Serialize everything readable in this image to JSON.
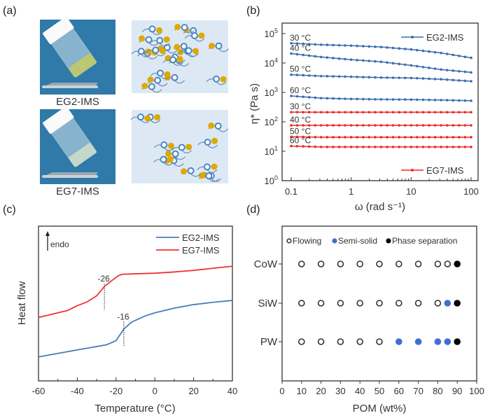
{
  "panel_labels": {
    "a": "(a)",
    "b": "(b)",
    "c": "(c)",
    "d": "(d)"
  },
  "panel_a": {
    "photo_labels": [
      "EG2-IMS",
      "EG7-IMS"
    ],
    "colors": {
      "photo_bg": "#2f7aa8",
      "schematic_bg": "#dce9f5",
      "anion": "#e0a800",
      "cation": "#4a86c5"
    }
  },
  "chart_data": [
    {
      "id": "b",
      "type": "line",
      "xlabel": "ω (rad s⁻¹)",
      "ylabel": "η* (Pa s)",
      "xscale": "log",
      "yscale": "log",
      "xlim": [
        0.1,
        100
      ],
      "ylim": [
        1,
        100000
      ],
      "x_ticks": [
        "0.1",
        "1",
        "10",
        "100"
      ],
      "y_ticks": [
        {
          "base": "10",
          "exp": "0"
        },
        {
          "base": "10",
          "exp": "1"
        },
        {
          "base": "10",
          "exp": "2"
        },
        {
          "base": "10",
          "exp": "3"
        },
        {
          "base": "10",
          "exp": "4"
        },
        {
          "base": "10",
          "exp": "5"
        }
      ],
      "legend": {
        "placement": "right",
        "entries": [
          {
            "name": "EG2-IMS",
            "color": "#3b6db0"
          },
          {
            "name": "EG7-IMS",
            "color": "#ee2a2a"
          }
        ]
      },
      "x": [
        0.1,
        0.316,
        1,
        3.16,
        10,
        31.6,
        100
      ],
      "series": [
        {
          "group": "EG2-IMS",
          "label": "30 °C",
          "color": "#3b6db0",
          "values": [
            47000,
            42000,
            39000,
            35000,
            29000,
            22000,
            15000
          ]
        },
        {
          "group": "EG2-IMS",
          "label": "40 °C",
          "color": "#3b6db0",
          "values": [
            21000,
            16000,
            13000,
            11000,
            8300,
            6000,
            4800
          ]
        },
        {
          "group": "EG2-IMS",
          "label": "50 °C",
          "color": "#3b6db0",
          "values": [
            4000,
            3600,
            3400,
            3200,
            3100,
            2800,
            2400
          ]
        },
        {
          "group": "EG2-IMS",
          "label": "60 °C",
          "color": "#3b6db0",
          "values": [
            760,
            640,
            600,
            580,
            570,
            550,
            520
          ]
        },
        {
          "group": "EG7-IMS",
          "label": "30 °C",
          "color": "#ee2a2a",
          "values": [
            214,
            212,
            212,
            212,
            212,
            212,
            212
          ]
        },
        {
          "group": "EG7-IMS",
          "label": "40 °C",
          "color": "#ee2a2a",
          "values": [
            76,
            76,
            76,
            76,
            76,
            76,
            76
          ]
        },
        {
          "group": "EG7-IMS",
          "label": "50 °C",
          "color": "#ee2a2a",
          "values": [
            31,
            30,
            30,
            30,
            30,
            30,
            30
          ]
        },
        {
          "group": "EG7-IMS",
          "label": "60 °C",
          "color": "#ee2a2a",
          "values": [
            15,
            14,
            14,
            14,
            14,
            14,
            14
          ]
        }
      ]
    },
    {
      "id": "c",
      "type": "line",
      "xlabel": "Temperature (°C)",
      "ylabel": "Heat flow",
      "xlim": [
        -60,
        40
      ],
      "x_ticks": [
        "-60",
        "-40",
        "-20",
        "0",
        "20",
        "40"
      ],
      "y_ticks": [],
      "endo_label": "endo",
      "legend": {
        "placement": "top-right"
      },
      "series": [
        {
          "name": "EG2-IMS",
          "color": "#4a7cb8",
          "x": [
            -60,
            -40,
            -30,
            -25,
            -20,
            -16,
            -12,
            -5,
            0,
            10,
            20,
            30,
            40
          ],
          "y": [
            15.5,
            20,
            22.2,
            23.3,
            26,
            33.5,
            38,
            42,
            44,
            47,
            49.3,
            50.8,
            52
          ]
        },
        {
          "name": "EG7-IMS",
          "color": "#ee3333",
          "x": [
            -60,
            -45,
            -40,
            -35,
            -30,
            -26,
            -22,
            -19,
            -17,
            -10,
            0,
            10,
            20,
            30,
            40
          ],
          "y": [
            41,
            45.5,
            48.6,
            51,
            55,
            61,
            65,
            67.8,
            68.9,
            69.2,
            69.6,
            70.4,
            71.4,
            72.8,
            74.1
          ]
        }
      ],
      "annotations": [
        {
          "text": "-26",
          "x": -26,
          "y_from": 61,
          "y_to": 46
        },
        {
          "text": "-16",
          "x": -16,
          "y_from": 36.5,
          "y_to": 22
        }
      ]
    },
    {
      "id": "d",
      "type": "scatter",
      "xlabel": "POM (wt%)",
      "xlim": [
        0,
        100
      ],
      "x_ticks": [
        "0",
        "10",
        "20",
        "30",
        "40",
        "50",
        "60",
        "70",
        "80",
        "90",
        "100"
      ],
      "categories": [
        "CoW",
        "SiW",
        "PW"
      ],
      "legend": {
        "placement": "top",
        "entries": [
          {
            "name": "Flowing",
            "state": "flowing",
            "color": "#333333"
          },
          {
            "name": "Semi-solid",
            "state": "semi",
            "color": "#3f6fd0"
          },
          {
            "name": "Phase separation",
            "state": "phase",
            "color": "#000000"
          }
        ]
      },
      "x": [
        10,
        20,
        30,
        40,
        50,
        60,
        70,
        80,
        85,
        90
      ],
      "series": [
        {
          "category": "CoW",
          "states": [
            "flowing",
            "flowing",
            "flowing",
            "flowing",
            "flowing",
            "flowing",
            "flowing",
            "flowing",
            "flowing",
            "phase"
          ]
        },
        {
          "category": "SiW",
          "states": [
            "flowing",
            "flowing",
            "flowing",
            "flowing",
            "flowing",
            "flowing",
            "flowing",
            "flowing",
            "semi",
            "phase"
          ]
        },
        {
          "category": "PW",
          "states": [
            "flowing",
            "flowing",
            "flowing",
            "flowing",
            "flowing",
            "semi",
            "semi",
            "semi",
            "semi",
            "phase"
          ]
        }
      ]
    }
  ]
}
